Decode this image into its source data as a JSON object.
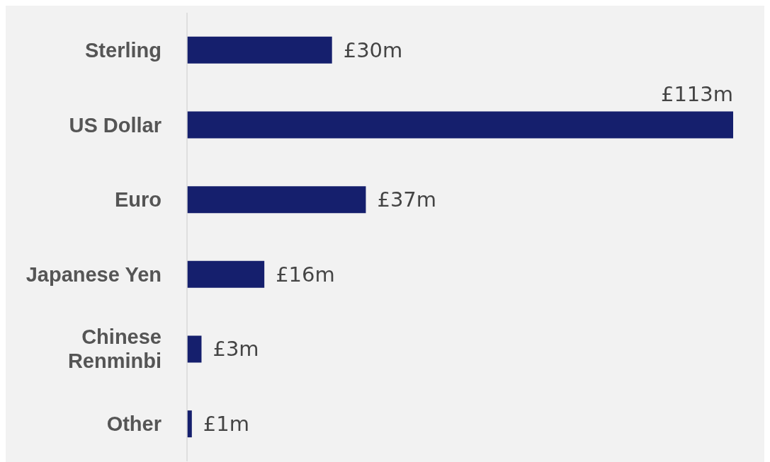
{
  "chart_data": {
    "type": "bar",
    "orientation": "horizontal",
    "categories": [
      "Sterling",
      "US Dollar",
      "Euro",
      "Japanese Yen",
      "Chinese Renminbi",
      "Other"
    ],
    "values": [
      30,
      113,
      37,
      16,
      3,
      1
    ],
    "color": "#151f6d",
    "value_labels": [
      "£30m",
      "£113m",
      "£37m",
      "£16m",
      "£3m",
      "£1m"
    ],
    "tick_labels": "y",
    "legend": false
  }
}
